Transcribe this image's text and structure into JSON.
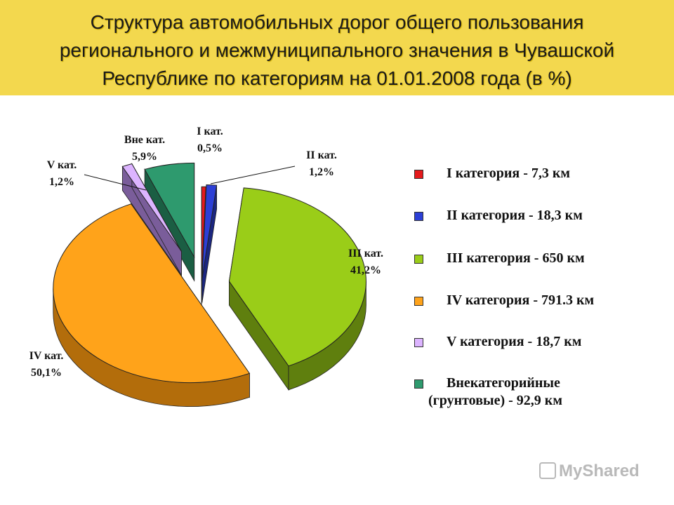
{
  "header": {
    "title_lines": [
      "Структура автомобильных дорог общего пользования",
      "регионального и межмуниципального значения в Чувашской",
      "Республике по категориям на 01.01.2008 года (в %)"
    ]
  },
  "chart_data": {
    "type": "pie",
    "categories": [
      "I кат.",
      "II кат.",
      "III кат.",
      "IV кат.",
      "V кат.",
      "Вне кат."
    ],
    "values": [
      0.5,
      1.2,
      41.2,
      50.1,
      1.2,
      5.9
    ],
    "value_labels": [
      "0,5%",
      "1,2%",
      "41,2%",
      "50,1%",
      "1,2%",
      "5,9%"
    ],
    "colors": [
      "#e41a1c",
      "#2c3fd6",
      "#9acd18",
      "#ffa31a",
      "#dcb4ff",
      "#2e9a6e"
    ],
    "side_colors": [
      "#8a0f10",
      "#1b2680",
      "#5f7f0e",
      "#b36d0b",
      "#7a5d9a",
      "#1b5e43"
    ],
    "legend": [
      {
        "label": "I категория - 7,3 км"
      },
      {
        "label": "II категория - 18,3 км"
      },
      {
        "label": "III категория - 650 км"
      },
      {
        "label": "IV категория - 791.3 км"
      },
      {
        "label": "V категория - 18,7 км"
      },
      {
        "label": "Внекатегорийные",
        "label2": "(грунтовые) - 92,9 км"
      }
    ],
    "exploded": true,
    "three_d": true
  },
  "watermark": {
    "text": "MyShared"
  }
}
